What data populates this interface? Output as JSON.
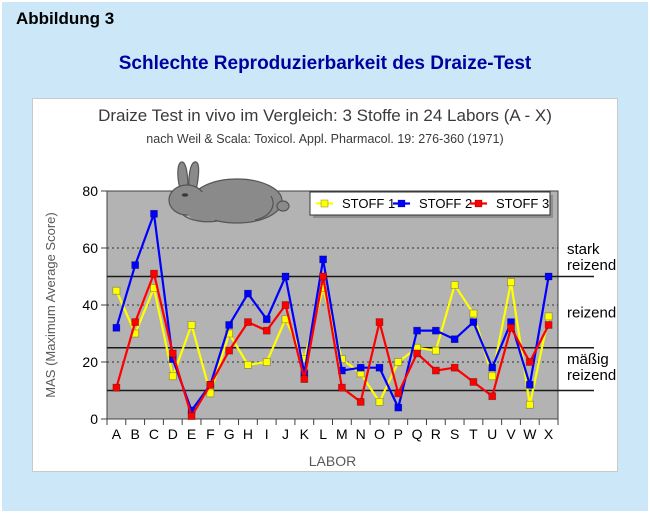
{
  "page": {
    "figure_label": "Abbildung 3",
    "heading": "Schlechte Reproduzierbarkeit des Draize-Test"
  },
  "colors": {
    "background": "#cbe7f8",
    "heading_blue": "#0000a0",
    "panel": "#ffffff",
    "plot_background": "#b3b3b3",
    "stoff1": "#ffff00",
    "stoff2": "#0000ff",
    "stoff3": "#ff0000",
    "rabbit_gray": "#8a8a8a"
  },
  "chart_data": {
    "type": "line",
    "title": "Draize Test in vivo im Vergleich: 3  Stoffe in 24 Labors (A - X)",
    "subtitle": "nach Weil & Scala:  Toxicol. Appl. Pharmacol. 19: 276-360 (1971)",
    "xlabel": "LABOR",
    "ylabel": "MAS (Maximum Average Score)",
    "ylim": [
      0,
      80
    ],
    "yticks": [
      0,
      20,
      40,
      60,
      80
    ],
    "dotted_gridlines": [
      20,
      40,
      60
    ],
    "zone_boundary_lines": [
      10,
      25,
      50
    ],
    "grid": "on",
    "legend_position": "top",
    "categories": [
      "A",
      "B",
      "C",
      "D",
      "E",
      "F",
      "G",
      "H",
      "I",
      "J",
      "K",
      "L",
      "M",
      "N",
      "O",
      "P",
      "Q",
      "R",
      "S",
      "T",
      "U",
      "V",
      "W",
      "X"
    ],
    "series": [
      {
        "name": "STOFF 1",
        "color": "#ffff00",
        "values": [
          45,
          30,
          46,
          15,
          33,
          9,
          30,
          19,
          20,
          35,
          21,
          46,
          21,
          16,
          6,
          20,
          25,
          24,
          47,
          37,
          15,
          48,
          5,
          36
        ]
      },
      {
        "name": "STOFF 2",
        "color": "#0000ff",
        "values": [
          32,
          54,
          72,
          21,
          3,
          12,
          33,
          44,
          35,
          50,
          16,
          56,
          17,
          18,
          18,
          4,
          31,
          31,
          28,
          34,
          18,
          34,
          12,
          50
        ]
      },
      {
        "name": "STOFF 3",
        "color": "#ff0000",
        "values": [
          11,
          34,
          51,
          23,
          1,
          12,
          24,
          34,
          31,
          40,
          14,
          50,
          11,
          6,
          34,
          9,
          23,
          17,
          18,
          13,
          8,
          32,
          20,
          33
        ]
      }
    ],
    "zone_labels": [
      {
        "text": "stark reizend",
        "lines": [
          "stark",
          "reizend"
        ],
        "label_value": 57
      },
      {
        "text": "reizend",
        "lines": [
          "reizend"
        ],
        "label_value": 37.5
      },
      {
        "text": "mäßig reizend",
        "lines": [
          "mäßig",
          "reizend"
        ],
        "label_value": 18.5
      }
    ]
  }
}
